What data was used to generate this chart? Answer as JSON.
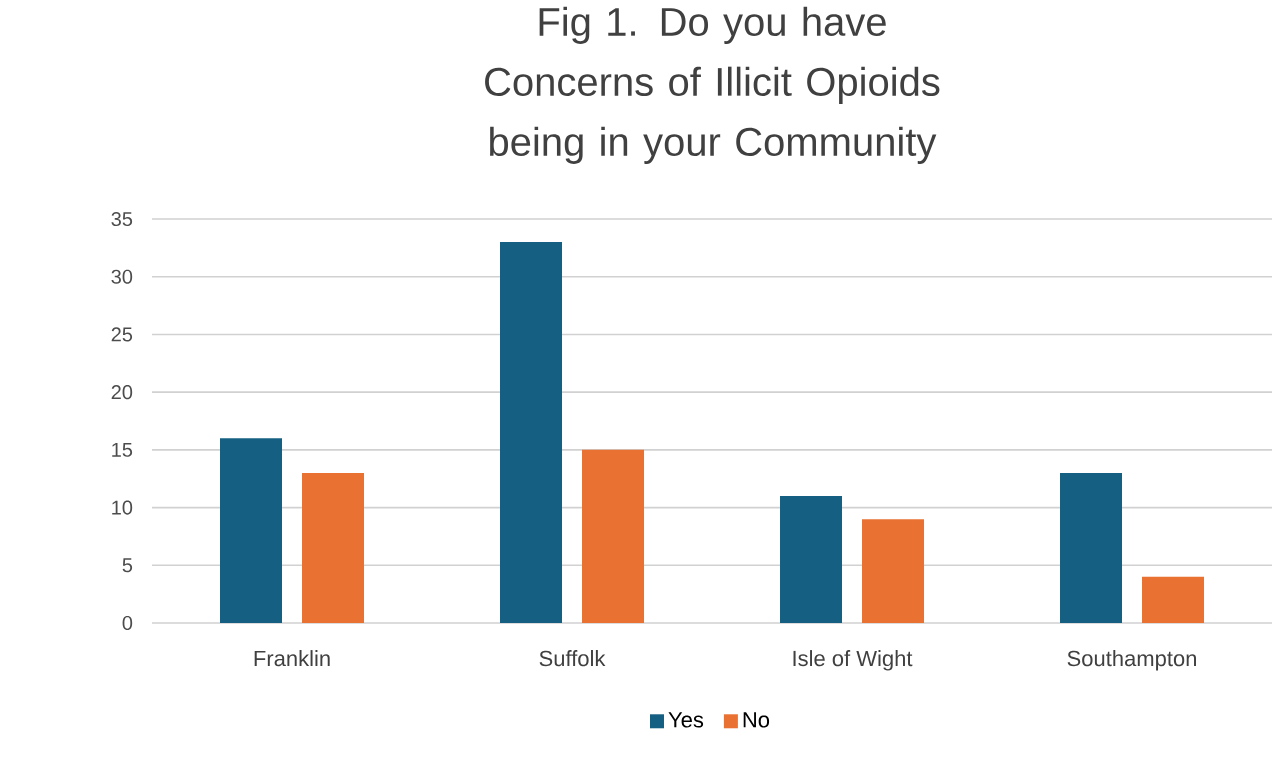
{
  "chart_data": {
    "type": "bar",
    "title": "Fig 1. Do you have Concerns of Illicit Opioids being in your Community",
    "categories": [
      "Franklin",
      "Suffolk",
      "Isle of Wight",
      "Southampton"
    ],
    "series": [
      {
        "name": "Yes",
        "color": "#156082",
        "values": [
          16,
          33,
          11,
          13
        ]
      },
      {
        "name": "No",
        "color": "#e97132",
        "values": [
          13,
          15,
          9,
          4
        ]
      }
    ],
    "ylim": [
      0,
      35
    ],
    "yticks": [
      0,
      5,
      10,
      15,
      20,
      25,
      30,
      35
    ],
    "grid": "y",
    "legend": "bottom"
  }
}
